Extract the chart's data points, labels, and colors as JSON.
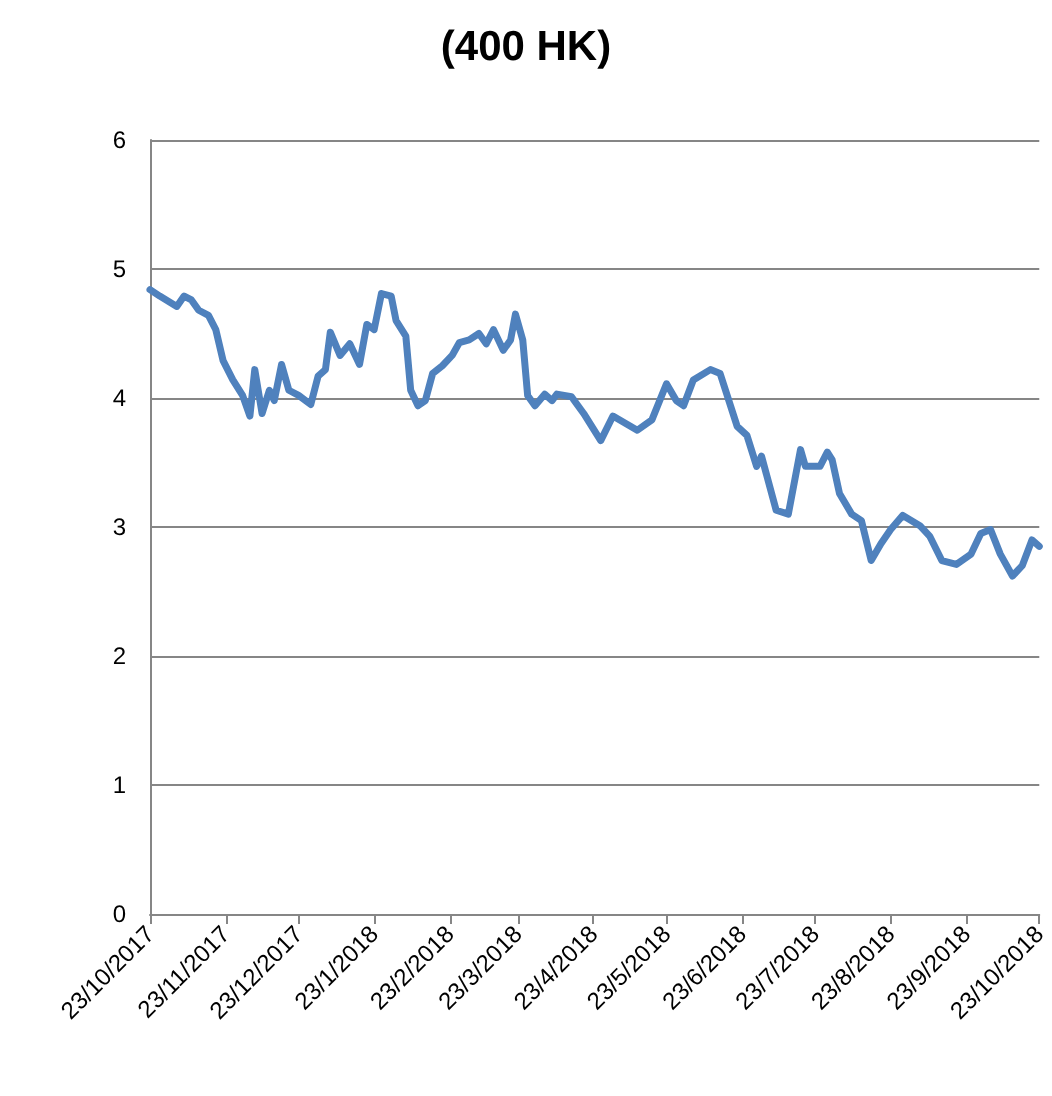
{
  "chart_data": {
    "type": "line",
    "title": "(400 HK)",
    "x": [
      "2017-10-23",
      "2017-10-27",
      "2017-11-03",
      "2017-11-06",
      "2017-11-09",
      "2017-11-12",
      "2017-11-16",
      "2017-11-19",
      "2017-11-22",
      "2017-11-26",
      "2017-11-30",
      "2017-12-03",
      "2017-12-05",
      "2017-12-08",
      "2017-12-11",
      "2017-12-13",
      "2017-12-16",
      "2017-12-19",
      "2017-12-23",
      "2017-12-28",
      "2017-12-31",
      "2018-01-03",
      "2018-01-05",
      "2018-01-09",
      "2018-01-13",
      "2018-01-17",
      "2018-01-20",
      "2018-01-23",
      "2018-01-26",
      "2018-01-30",
      "2018-02-01",
      "2018-02-05",
      "2018-02-07",
      "2018-02-10",
      "2018-02-13",
      "2018-02-16",
      "2018-02-20",
      "2018-02-24",
      "2018-02-27",
      "2018-03-03",
      "2018-03-07",
      "2018-03-10",
      "2018-03-13",
      "2018-03-17",
      "2018-03-20",
      "2018-03-22",
      "2018-03-25",
      "2018-03-27",
      "2018-03-30",
      "2018-04-03",
      "2018-04-06",
      "2018-04-08",
      "2018-04-14",
      "2018-04-19",
      "2018-04-26",
      "2018-05-01",
      "2018-05-11",
      "2018-05-17",
      "2018-05-23",
      "2018-05-27",
      "2018-05-30",
      "2018-06-03",
      "2018-06-10",
      "2018-06-14",
      "2018-06-21",
      "2018-06-25",
      "2018-06-29",
      "2018-07-01",
      "2018-07-07",
      "2018-07-12",
      "2018-07-17",
      "2018-07-19",
      "2018-07-25",
      "2018-07-28",
      "2018-07-30",
      "2018-08-02",
      "2018-08-07",
      "2018-08-11",
      "2018-08-15",
      "2018-08-19",
      "2018-08-23",
      "2018-08-28",
      "2018-09-04",
      "2018-09-08",
      "2018-09-13",
      "2018-09-19",
      "2018-09-25",
      "2018-09-29",
      "2018-10-03",
      "2018-10-07",
      "2018-10-12",
      "2018-10-16",
      "2018-10-20",
      "2018-10-23"
    ],
    "series": [
      {
        "color": "#4f81bd",
        "values": [
          4.84,
          4.79,
          4.71,
          4.79,
          4.76,
          4.68,
          4.64,
          4.53,
          4.29,
          4.14,
          4.02,
          3.86,
          4.22,
          3.88,
          4.06,
          3.98,
          4.26,
          4.06,
          4.02,
          3.95,
          4.17,
          4.22,
          4.51,
          4.33,
          4.42,
          4.26,
          4.57,
          4.53,
          4.81,
          4.79,
          4.6,
          4.48,
          4.06,
          3.94,
          3.98,
          4.19,
          4.25,
          4.33,
          4.43,
          4.45,
          4.5,
          4.42,
          4.53,
          4.37,
          4.45,
          4.65,
          4.45,
          4.02,
          3.94,
          4.03,
          3.98,
          4.03,
          4.01,
          3.88,
          3.67,
          3.86,
          3.75,
          3.83,
          4.11,
          3.98,
          3.94,
          4.14,
          4.22,
          4.19,
          3.78,
          3.71,
          3.47,
          3.55,
          3.13,
          3.1,
          3.6,
          3.47,
          3.47,
          3.58,
          3.52,
          3.26,
          3.1,
          3.05,
          2.74,
          2.87,
          2.98,
          3.09,
          3.01,
          2.93,
          2.74,
          2.71,
          2.79,
          2.95,
          2.98,
          2.79,
          2.62,
          2.7,
          2.9,
          2.85
        ]
      }
    ],
    "xlim": [
      "2017-10-23",
      "2018-10-23"
    ],
    "xticks": [
      {
        "value": "2017-10-23",
        "label": "23/10/2017"
      },
      {
        "value": "2017-11-23",
        "label": "23/11/2017"
      },
      {
        "value": "2017-12-23",
        "label": "23/12/2017"
      },
      {
        "value": "2018-01-23",
        "label": "23/1/2018"
      },
      {
        "value": "2018-02-23",
        "label": "23/2/2018"
      },
      {
        "value": "2018-03-23",
        "label": "23/3/2018"
      },
      {
        "value": "2018-04-23",
        "label": "23/4/2018"
      },
      {
        "value": "2018-05-23",
        "label": "23/5/2018"
      },
      {
        "value": "2018-06-23",
        "label": "23/6/2018"
      },
      {
        "value": "2018-07-23",
        "label": "23/7/2018"
      },
      {
        "value": "2018-08-23",
        "label": "23/8/2018"
      },
      {
        "value": "2018-09-23",
        "label": "23/9/2018"
      },
      {
        "value": "2018-10-23",
        "label": "23/10/2018"
      }
    ],
    "ylim": [
      0,
      6
    ],
    "yticks": [
      0,
      1,
      2,
      3,
      4,
      5,
      6
    ],
    "grid": "y",
    "marker": "none",
    "line_style": "solid"
  }
}
